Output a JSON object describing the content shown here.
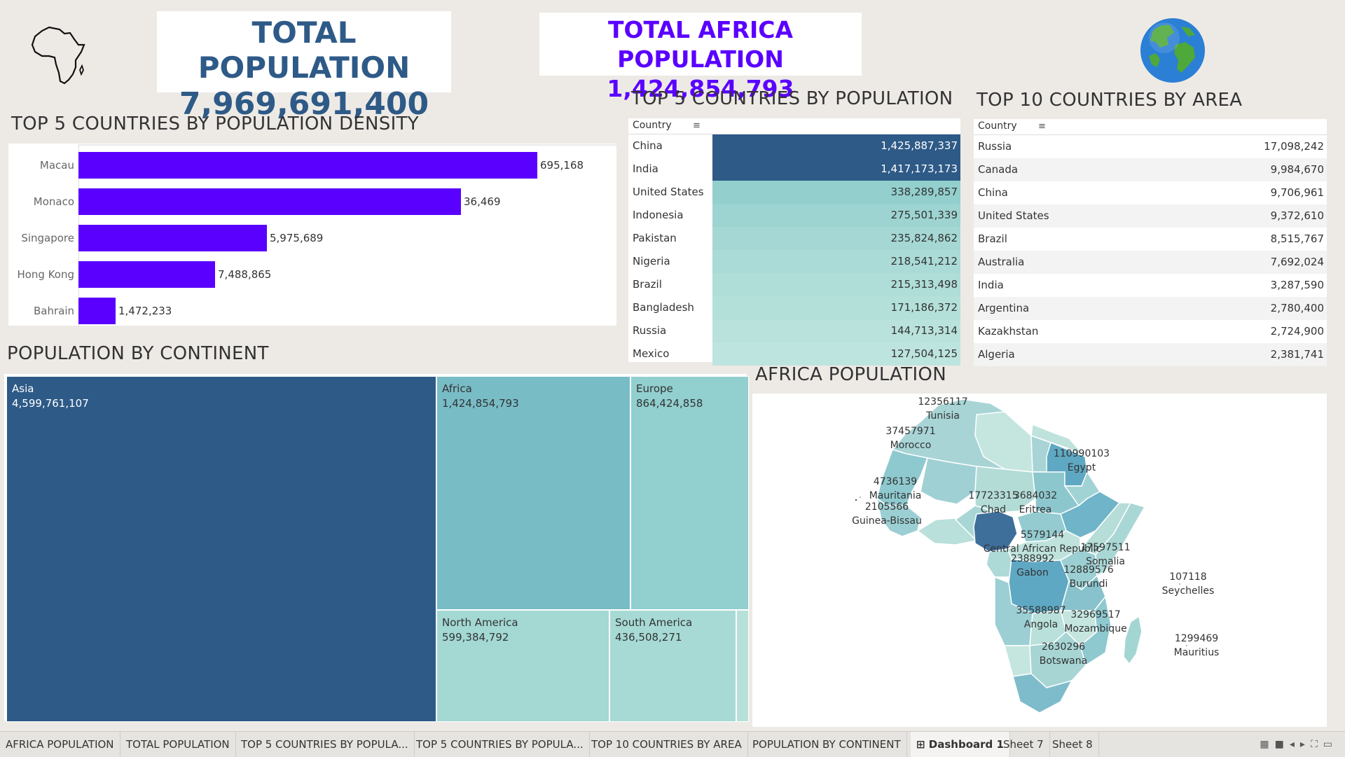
{
  "kpis": {
    "total_population": {
      "title": "TOTAL POPULATION",
      "value": "7,969,691,400"
    },
    "africa_population": {
      "title": "TOTAL AFRICA POPULATION",
      "value": "1,424,854,793"
    }
  },
  "icons": {
    "africa_outline": "africa-outline-icon",
    "globe": "globe-icon",
    "sort": "sort-icon"
  },
  "colors": {
    "purple": "#5a00ff",
    "dark_blue": "#2e5a87",
    "teal": "#78bcc6",
    "light_teal": "#a7d8d3"
  },
  "sections": {
    "density_title": "TOP 5 COUNTRIES BY POPULATION DENSITY",
    "top5_pop_title": "TOP 5 COUNTRIES BY POPULATION",
    "top10_area_title": "TOP 10 COUNTRIES BY AREA",
    "continent_title": "POPULATION BY CONTINENT",
    "africa_title": "AFRICA POPULATION"
  },
  "chart_data": [
    {
      "type": "bar",
      "orientation": "horizontal",
      "title": "TOP 5 COUNTRIES BY POPULATION DENSITY",
      "categories": [
        "Macau",
        "Monaco",
        "Singapore",
        "Hong Kong",
        "Bahrain"
      ],
      "bar_lengths": [
        695168,
        579000,
        285000,
        206500,
        56500
      ],
      "labels": [
        "695,168",
        "36,469",
        "5,975,689",
        "7,488,865",
        "1,472,233"
      ]
    },
    {
      "type": "table",
      "title": "TOP 5 COUNTRIES BY POPULATION",
      "columns": [
        "Country",
        ""
      ],
      "rows": [
        [
          "China",
          "1,425,887,337"
        ],
        [
          "India",
          "1,417,173,173"
        ],
        [
          "United States",
          "338,289,857"
        ],
        [
          "Indonesia",
          "275,501,339"
        ],
        [
          "Pakistan",
          "235,824,862"
        ],
        [
          "Nigeria",
          "218,541,212"
        ],
        [
          "Brazil",
          "215,313,498"
        ],
        [
          "Bangladesh",
          "171,186,372"
        ],
        [
          "Russia",
          "144,713,314"
        ],
        [
          "Mexico",
          "127,504,125"
        ]
      ],
      "cell_colors": [
        "#2e5a87",
        "#2e5a87",
        "#92cfcd",
        "#9dd4d1",
        "#a5d8d4",
        "#aadbd6",
        "#afddd8",
        "#b4e0da",
        "#b9e2dc",
        "#bde4de"
      ]
    },
    {
      "type": "table",
      "title": "TOP 10 COUNTRIES BY AREA",
      "columns": [
        "Country",
        ""
      ],
      "rows": [
        [
          "Russia",
          "17,098,242"
        ],
        [
          "Canada",
          "9,984,670"
        ],
        [
          "China",
          "9,706,961"
        ],
        [
          "United States",
          "9,372,610"
        ],
        [
          "Brazil",
          "8,515,767"
        ],
        [
          "Australia",
          "7,692,024"
        ],
        [
          "India",
          "3,287,590"
        ],
        [
          "Argentina",
          "2,780,400"
        ],
        [
          "Kazakhstan",
          "2,724,900"
        ],
        [
          "Algeria",
          "2,381,741"
        ]
      ]
    },
    {
      "type": "heatmap",
      "title": "POPULATION BY CONTINENT",
      "items": [
        {
          "name": "Asia",
          "value": 4599761107,
          "label": "4,599,761,107",
          "color": "#2e5a87"
        },
        {
          "name": "Africa",
          "value": 1424854793,
          "label": "1,424,854,793",
          "color": "#78bcc6"
        },
        {
          "name": "Europe",
          "value": 864424858,
          "label": "864,424,858",
          "color": "#92cfcf"
        },
        {
          "name": "North America",
          "value": 599384792,
          "label": "599,384,792",
          "color": "#a3d8d3"
        },
        {
          "name": "South America",
          "value": 436508271,
          "label": "436,508,271",
          "color": "#a7dad5"
        },
        {
          "name": "",
          "value": 45000000,
          "label": "",
          "color": "#b5e1da"
        }
      ]
    }
  ],
  "africa_map": {
    "title": "AFRICA POPULATION",
    "labels": [
      {
        "value": "12356117",
        "name": "Tunisia"
      },
      {
        "value": "37457971",
        "name": "Morocco"
      },
      {
        "value": "110990103",
        "name": "Egypt"
      },
      {
        "value": "4736139",
        "name": "Mauritania"
      },
      {
        "value": "17723315",
        "name": "Chad"
      },
      {
        "value": "3684032",
        "name": "Eritrea"
      },
      {
        "value": "2105566",
        "name": "Guinea-Bissau"
      },
      {
        "value": "5579144",
        "name": "Central African Republic"
      },
      {
        "value": "17597511",
        "name": "Somalia"
      },
      {
        "value": "2388992",
        "name": "Gabon"
      },
      {
        "value": "12889576",
        "name": "Burundi"
      },
      {
        "value": "107118",
        "name": "Seychelles"
      },
      {
        "value": "35588987",
        "name": "Angola"
      },
      {
        "value": "32969517",
        "name": "Mozambique"
      },
      {
        "value": "1299469",
        "name": "Mauritius"
      },
      {
        "value": "2630296",
        "name": "Botswana"
      }
    ]
  },
  "tabs": [
    "AFRICA POPULATION",
    "TOTAL POPULATION",
    "TOP 5 COUNTRIES BY POPULA...",
    "TOP 5 COUNTRIES BY POPULA...",
    "TOP 10 COUNTRIES BY AREA",
    "POPULATION BY CONTINENT",
    "Dashboard 1",
    "Sheet 7",
    "Sheet 8"
  ],
  "active_tab": "Dashboard 1"
}
